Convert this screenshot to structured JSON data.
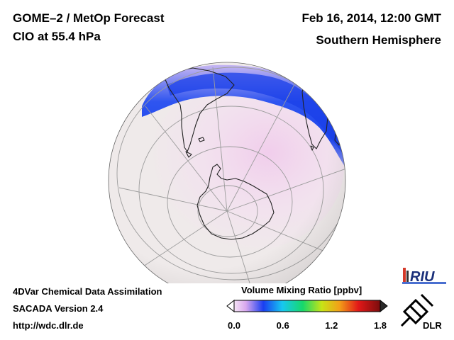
{
  "header": {
    "title": "GOME–2 / MetOp Forecast",
    "species": "ClO at 55.4 hPa",
    "datetime": "Feb 16, 2014, 12:00 GMT",
    "hemisphere": "Southern Hemisphere"
  },
  "footer": {
    "line1": "4DVar Chemical Data Assimilation",
    "line2": "SACADA Version 2.4",
    "line3": "http://wdc.dlr.de"
  },
  "colorbar": {
    "title": "Volume Mixing Ratio [ppbv]",
    "min": 0.0,
    "max": 1.8,
    "ticks": [
      "0.0",
      "0.6",
      "1.2",
      "1.8"
    ]
  },
  "logos": {
    "riu": "RIU",
    "dlr": "DLR"
  },
  "colors": {
    "ocean": "#efeaea",
    "low": "#f4ddf1",
    "band": "#1f4cf0",
    "band_edge": "#6a7cf2",
    "coast": "#222222",
    "grid": "#9a9a9a"
  }
}
